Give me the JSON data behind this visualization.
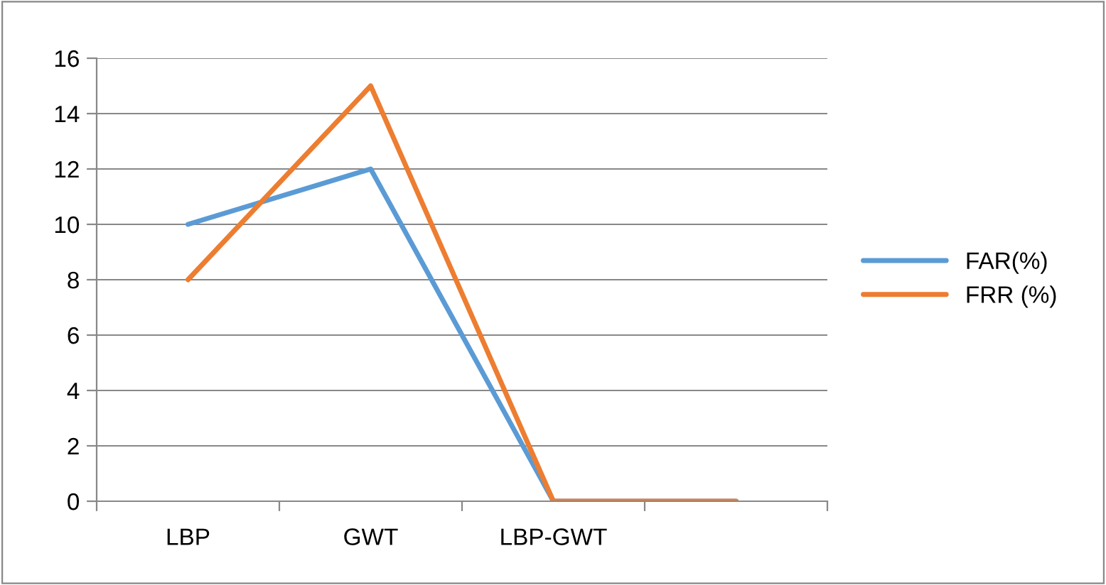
{
  "chart_data": {
    "type": "line",
    "categories": [
      "LBP",
      "GWT",
      "LBP-GWT",
      null
    ],
    "series": [
      {
        "name": "FAR(%)",
        "color": "#5b9bd5",
        "values": [
          10,
          12,
          0,
          0
        ]
      },
      {
        "name": "FRR (%)",
        "color": "#ed7d31",
        "values": [
          8,
          15,
          0,
          0
        ]
      }
    ],
    "ylim": [
      0,
      16
    ],
    "yticks": [
      0,
      2,
      4,
      6,
      8,
      10,
      12,
      14,
      16
    ],
    "grid": "y",
    "legend": "right",
    "marker": "none",
    "line_style": "solid"
  }
}
